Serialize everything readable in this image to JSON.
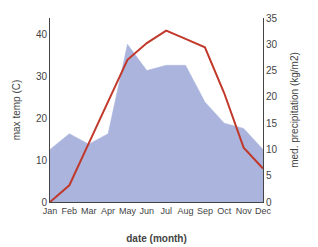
{
  "chart_data": {
    "type": "line",
    "categories": [
      "Jan",
      "Feb",
      "Mar",
      "Apr",
      "May",
      "Jun",
      "Jul",
      "Aug",
      "Sep",
      "Oct",
      "Nov",
      "Dec"
    ],
    "xlabel": "date (month)",
    "ylabel": "max temp (C)",
    "y2label": "med. precipitation (kg/m2)",
    "ylim": [
      0,
      44
    ],
    "yticks": [
      0,
      10,
      20,
      30,
      40
    ],
    "y2lim": [
      0,
      35
    ],
    "y2ticks": [
      0,
      5,
      10,
      15,
      20,
      25,
      30,
      35
    ],
    "grid": false,
    "series": [
      {
        "type": "area",
        "axis": "y2",
        "color": "#aab4dd",
        "values": [
          10,
          13,
          11,
          13,
          30,
          25,
          26,
          26,
          19,
          15,
          14,
          10
        ]
      },
      {
        "type": "line",
        "color": "#c0392b",
        "values": [
          0,
          4,
          14,
          24,
          34,
          38,
          41,
          39,
          37,
          26,
          13,
          8
        ]
      }
    ]
  }
}
